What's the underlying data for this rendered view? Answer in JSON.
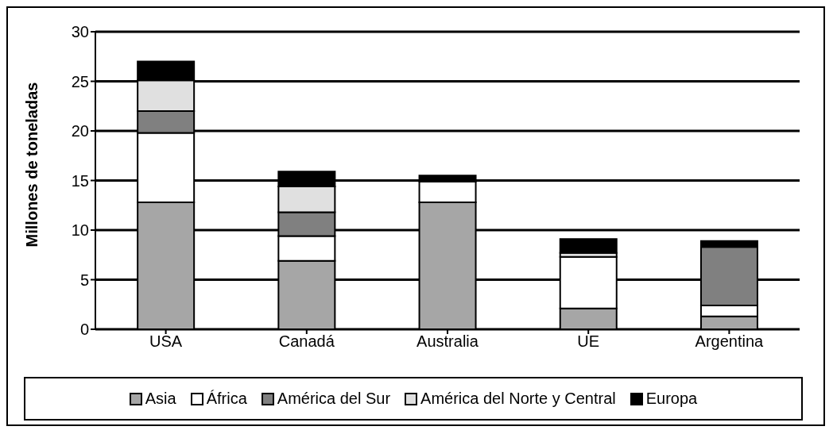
{
  "chart_data": {
    "type": "bar",
    "stacked": true,
    "ylabel": "Millones de toneladas",
    "categories": [
      "USA",
      "Canadá",
      "Australia",
      "UE",
      "Argentina"
    ],
    "series": [
      {
        "name": "Asia",
        "color": "#a6a6a6",
        "values": [
          12.8,
          6.9,
          12.8,
          2.1,
          1.3
        ]
      },
      {
        "name": "África",
        "color": "#ffffff",
        "values": [
          7.0,
          2.5,
          2.1,
          5.2,
          1.1
        ]
      },
      {
        "name": "América del Sur",
        "color": "#808080",
        "values": [
          2.2,
          2.4,
          0,
          0,
          5.9
        ]
      },
      {
        "name": "América del Norte y Central",
        "color": "#e0e0e0",
        "values": [
          3.1,
          2.6,
          0,
          0.4,
          0
        ]
      },
      {
        "name": "Europa",
        "color": "#000000",
        "values": [
          1.9,
          1.5,
          0.6,
          1.4,
          0.6
        ]
      }
    ],
    "ylim": [
      0,
      30
    ],
    "yticks": [
      0,
      5,
      10,
      15,
      20,
      25,
      30
    ],
    "grid": "y",
    "legend": "bottom"
  }
}
